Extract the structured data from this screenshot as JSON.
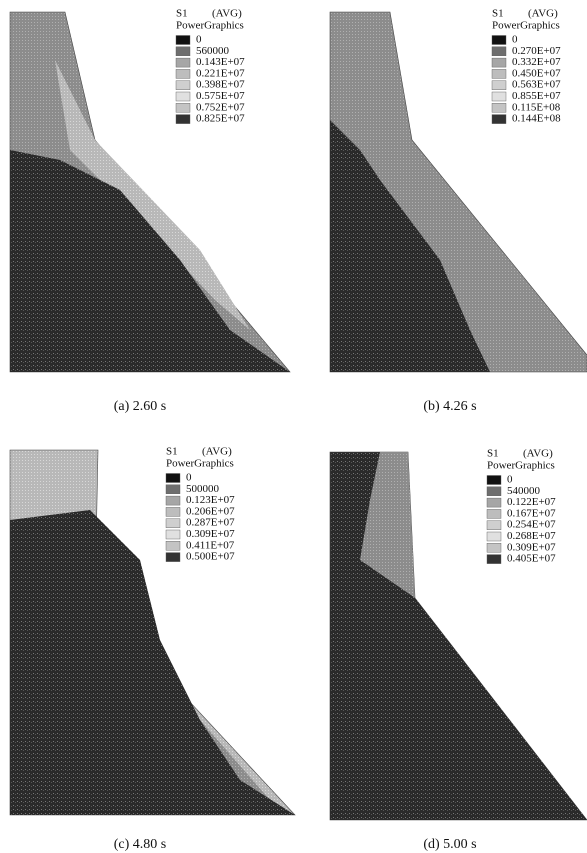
{
  "panels": [
    {
      "caption": "(a) 2.60 s",
      "legend": {
        "title": "S1",
        "avg": "(AVG)",
        "subtitle": "PowerGraphics",
        "levels": [
          "0",
          "560000",
          "0.143E+07",
          "0.221E+07",
          "0.398E+07",
          "0.575E+07",
          "0.752E+07",
          "0.825E+07"
        ]
      }
    },
    {
      "caption": "(b) 4.26 s",
      "legend": {
        "title": "S1",
        "avg": "(AVG)",
        "subtitle": "PowerGraphics",
        "levels": [
          "0",
          "0.270E+07",
          "0.332E+07",
          "0.450E+07",
          "0.563E+07",
          "0.855E+07",
          "0.115E+08",
          "0.144E+08"
        ]
      }
    },
    {
      "caption": "(c) 4.80 s",
      "legend": {
        "title": "S1",
        "avg": "(AVG)",
        "subtitle": "PowerGraphics",
        "levels": [
          "0",
          "500000",
          "0.123E+07",
          "0.206E+07",
          "0.287E+07",
          "0.309E+07",
          "0.411E+07",
          "0.500E+07"
        ]
      }
    },
    {
      "caption": "(d) 5.00 s",
      "legend": {
        "title": "S1",
        "avg": "(AVG)",
        "subtitle": "PowerGraphics",
        "levels": [
          "0",
          "540000",
          "0.122E+07",
          "0.167E+07",
          "0.254E+07",
          "0.268E+07",
          "0.309E+07",
          "0.405E+07"
        ]
      }
    }
  ]
}
